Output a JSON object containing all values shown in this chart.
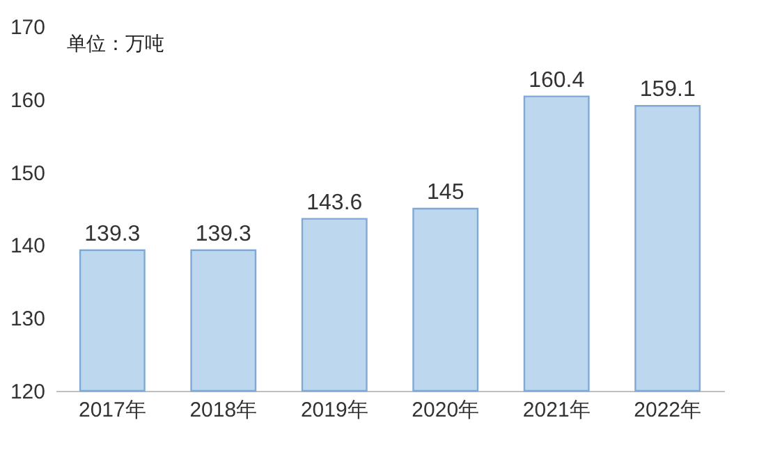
{
  "chart_data": {
    "type": "bar",
    "categories": [
      "2017年",
      "2018年",
      "2019年",
      "2020年",
      "2021年",
      "2022年"
    ],
    "values": [
      139.3,
      139.3,
      143.6,
      145,
      160.4,
      159.1
    ],
    "color": "#bdd7ee",
    "ylim": [
      120,
      170
    ],
    "yticks": [
      120,
      130,
      140,
      150,
      160,
      170
    ],
    "data_labels": true,
    "annotations": [
      "单位：万吨"
    ]
  }
}
